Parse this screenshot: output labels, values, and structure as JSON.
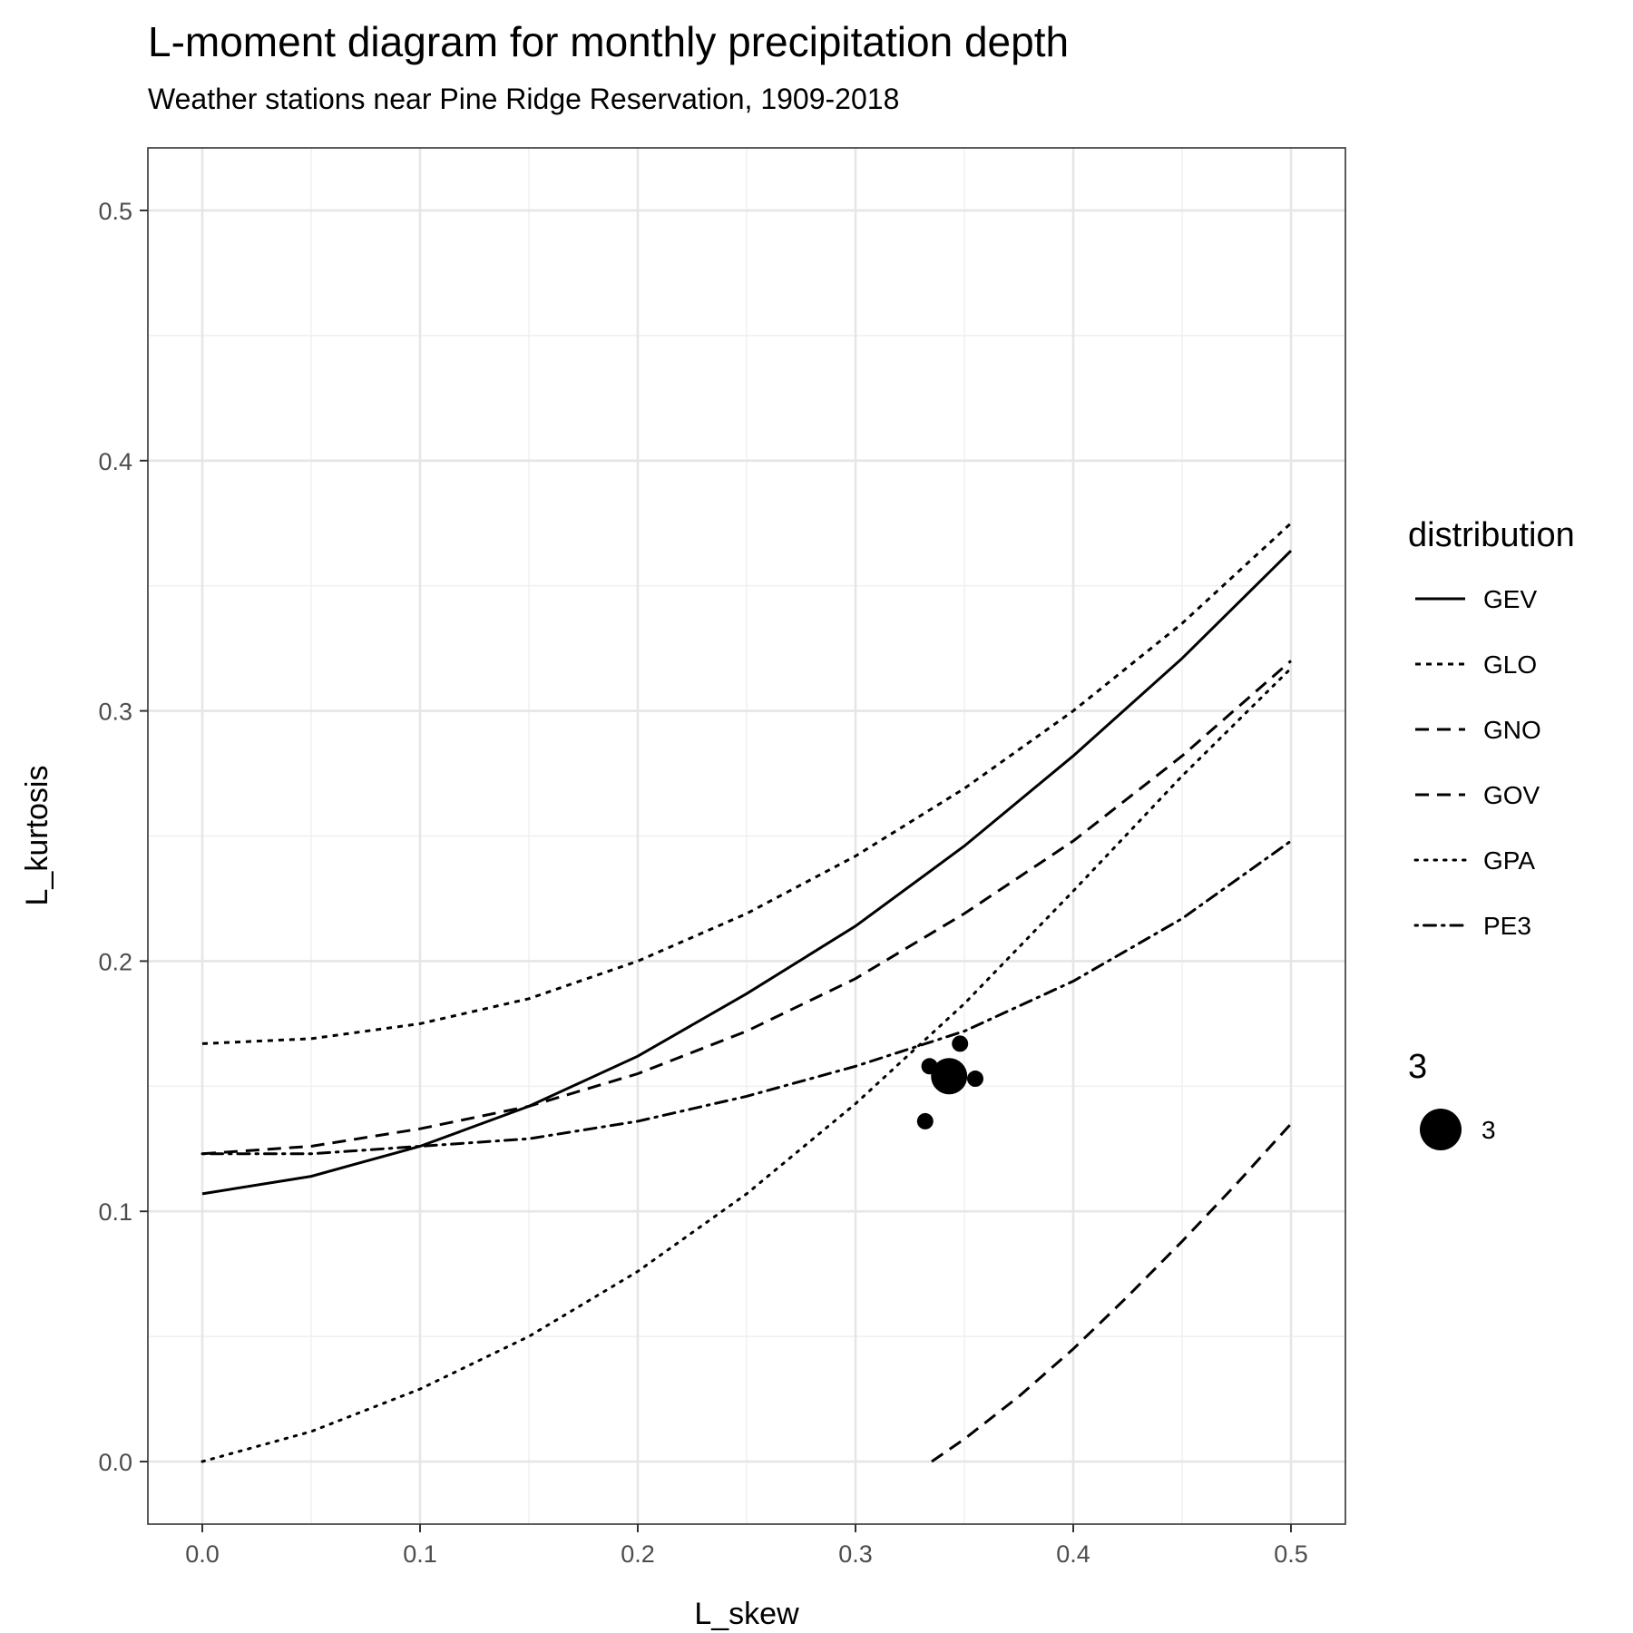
{
  "chart_data": {
    "type": "line",
    "title": "L-moment diagram for monthly precipitation depth",
    "subtitle": "Weather stations near Pine Ridge Reservation, 1909-2018",
    "xlabel": "L_skew",
    "ylabel": "L_kurtosis",
    "xlim": [
      -0.025,
      0.525
    ],
    "ylim": [
      -0.025,
      0.525
    ],
    "x_ticks": [
      0.0,
      0.1,
      0.2,
      0.3,
      0.4,
      0.5
    ],
    "x_tick_labels": [
      "0.0",
      "0.1",
      "0.2",
      "0.3",
      "0.4",
      "0.5"
    ],
    "y_ticks": [
      0.0,
      0.1,
      0.2,
      0.3,
      0.4,
      0.5
    ],
    "y_tick_labels": [
      "0.0",
      "0.1",
      "0.2",
      "0.3",
      "0.4",
      "0.5"
    ],
    "grid": true,
    "legend_position": "right",
    "legend_title": "distribution",
    "series": [
      {
        "name": "GEV",
        "dash": "solid",
        "x": [
          0.0,
          0.05,
          0.1,
          0.15,
          0.2,
          0.25,
          0.3,
          0.35,
          0.4,
          0.45,
          0.5
        ],
        "y": [
          0.107,
          0.114,
          0.126,
          0.142,
          0.162,
          0.187,
          0.214,
          0.246,
          0.282,
          0.321,
          0.364
        ]
      },
      {
        "name": "GLO",
        "dash": "short-dash",
        "x": [
          0.0,
          0.05,
          0.1,
          0.15,
          0.2,
          0.25,
          0.3,
          0.35,
          0.4,
          0.45,
          0.5
        ],
        "y": [
          0.167,
          0.169,
          0.175,
          0.185,
          0.2,
          0.219,
          0.242,
          0.269,
          0.3,
          0.335,
          0.375
        ]
      },
      {
        "name": "GNO",
        "dash": "long-dash",
        "x": [
          0.0,
          0.05,
          0.1,
          0.15,
          0.2,
          0.25,
          0.3,
          0.35,
          0.4,
          0.45,
          0.5
        ],
        "y": [
          0.123,
          0.126,
          0.133,
          0.142,
          0.155,
          0.172,
          0.193,
          0.219,
          0.248,
          0.282,
          0.32
        ]
      },
      {
        "name": "GOV",
        "dash": "long-dash",
        "x": [
          0.335,
          0.35,
          0.375,
          0.4,
          0.425,
          0.45,
          0.475,
          0.5
        ],
        "y": [
          0.0,
          0.009,
          0.026,
          0.045,
          0.066,
          0.088,
          0.111,
          0.135
        ]
      },
      {
        "name": "GPA",
        "dash": "dotted",
        "x": [
          0.0,
          0.05,
          0.1,
          0.15,
          0.2,
          0.25,
          0.3,
          0.35,
          0.4,
          0.45,
          0.5
        ],
        "y": [
          0.0,
          0.012,
          0.029,
          0.05,
          0.076,
          0.107,
          0.143,
          0.183,
          0.228,
          0.274,
          0.317
        ]
      },
      {
        "name": "PE3",
        "dash": "dot-dash",
        "x": [
          0.0,
          0.05,
          0.1,
          0.15,
          0.2,
          0.25,
          0.3,
          0.35,
          0.4,
          0.45,
          0.5
        ],
        "y": [
          0.123,
          0.123,
          0.126,
          0.129,
          0.136,
          0.146,
          0.158,
          0.172,
          0.192,
          0.217,
          0.248
        ]
      }
    ],
    "points": [
      {
        "x": 0.343,
        "y": 0.154,
        "size": "large"
      },
      {
        "x": 0.348,
        "y": 0.167,
        "size": "small"
      },
      {
        "x": 0.334,
        "y": 0.158,
        "size": "small"
      },
      {
        "x": 0.355,
        "y": 0.153,
        "size": "small"
      },
      {
        "x": 0.332,
        "y": 0.136,
        "size": "small"
      }
    ],
    "size_legend": {
      "title": "3",
      "label": "3"
    }
  }
}
